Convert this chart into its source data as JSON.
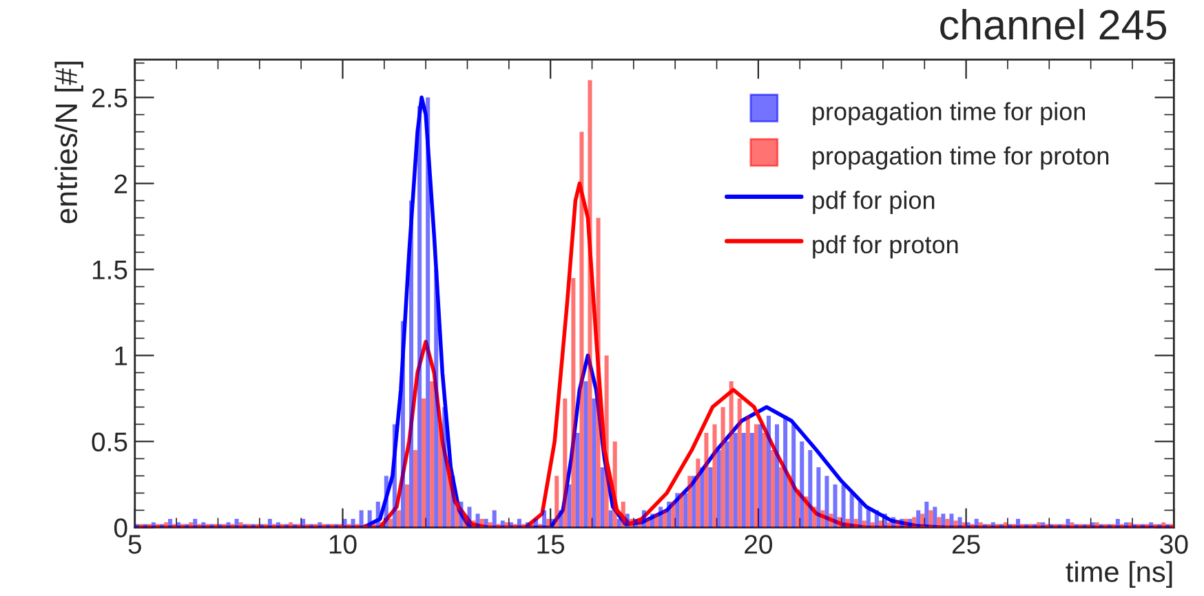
{
  "chart_data": {
    "type": "histogram",
    "title": "channel 245",
    "xlabel": "time [ns]",
    "ylabel": "entries/N [#]",
    "bins": [
      5.0,
      5.2,
      5.4,
      5.6,
      5.8,
      6.0,
      6.2,
      6.4,
      6.6,
      6.8,
      7.0,
      7.2,
      7.4,
      7.6,
      7.8,
      8.0,
      8.2,
      8.4,
      8.6,
      8.8,
      9.0,
      9.2,
      9.4,
      9.6,
      9.8,
      10.0,
      10.2,
      10.4,
      10.6,
      10.8,
      11.0,
      11.2,
      11.4,
      11.6,
      11.8,
      12.0,
      12.2,
      12.4,
      12.6,
      12.8,
      13.0,
      13.2,
      13.4,
      13.6,
      13.8,
      14.0,
      14.2,
      14.4,
      14.6,
      14.8,
      15.0,
      15.2,
      15.4,
      15.6,
      15.8,
      16.0,
      16.2,
      16.4,
      16.6,
      16.8,
      17.0,
      17.2,
      17.4,
      17.6,
      17.8,
      18.0,
      18.2,
      18.4,
      18.6,
      18.8,
      19.0,
      19.2,
      19.4,
      19.6,
      19.8,
      20.0,
      20.2,
      20.4,
      20.6,
      20.8,
      21.0,
      21.2,
      21.4,
      21.6,
      21.8,
      22.0,
      22.2,
      22.4,
      22.6,
      22.8,
      23.0,
      23.2,
      23.4,
      23.6,
      23.8,
      24.0,
      24.2,
      24.4,
      24.6,
      24.8,
      25.0,
      25.2,
      25.4,
      25.6,
      25.8,
      26.0,
      26.2,
      26.4,
      26.6,
      26.8,
      27.0,
      27.2,
      27.4,
      27.6,
      27.8,
      28.0,
      28.2,
      28.4,
      28.6,
      28.8,
      29.0,
      29.2,
      29.4,
      29.6,
      29.8,
      30.0
    ],
    "series": [
      {
        "type": "histogram",
        "name": "propagation time for pion",
        "color": "#0000ff",
        "values": [
          0.02,
          0.02,
          0.03,
          0.02,
          0.05,
          0.03,
          0.02,
          0.05,
          0.03,
          0.02,
          0.02,
          0.03,
          0.05,
          0.02,
          0.02,
          0.02,
          0.05,
          0.03,
          0.02,
          0.02,
          0.05,
          0.02,
          0.03,
          0.02,
          0.02,
          0.05,
          0.05,
          0.1,
          0.1,
          0.15,
          0.3,
          0.6,
          1.2,
          1.9,
          2.45,
          2.5,
          1.5,
          0.7,
          0.3,
          0.15,
          0.12,
          0.08,
          0.05,
          0.1,
          0.04,
          0.03,
          0.05,
          0.03,
          0.05,
          0.1,
          0.05,
          0.1,
          0.25,
          0.55,
          0.85,
          0.75,
          0.35,
          0.1,
          0.05,
          0.08,
          0.05,
          0.1,
          0.08,
          0.12,
          0.15,
          0.2,
          0.2,
          0.3,
          0.35,
          0.35,
          0.45,
          0.5,
          0.55,
          0.55,
          0.55,
          0.6,
          0.65,
          0.6,
          0.65,
          0.6,
          0.5,
          0.45,
          0.35,
          0.3,
          0.25,
          0.25,
          0.2,
          0.15,
          0.12,
          0.1,
          0.08,
          0.06,
          0.05,
          0.05,
          0.1,
          0.15,
          0.12,
          0.08,
          0.08,
          0.06,
          0.03,
          0.05,
          0.02,
          0.03,
          0.02,
          0.02,
          0.05,
          0.02,
          0.02,
          0.03,
          0.02,
          0.02,
          0.05,
          0.02,
          0.02,
          0.03,
          0.02,
          0.02,
          0.05,
          0.03,
          0.02,
          0.02,
          0.03,
          0.02,
          0.02
        ]
      },
      {
        "type": "histogram",
        "name": "propagation time for proton",
        "color": "#ff0000",
        "values": [
          0.02,
          0.02,
          0.02,
          0.03,
          0.02,
          0.02,
          0.03,
          0.02,
          0.02,
          0.02,
          0.02,
          0.02,
          0.03,
          0.02,
          0.02,
          0.02,
          0.02,
          0.02,
          0.03,
          0.02,
          0.02,
          0.02,
          0.02,
          0.02,
          0.02,
          0.02,
          0.02,
          0.02,
          0.02,
          0.03,
          0.05,
          0.1,
          0.25,
          0.45,
          0.75,
          0.85,
          0.6,
          0.35,
          0.15,
          0.06,
          0.04,
          0.05,
          0.03,
          0.02,
          0.03,
          0.02,
          0.02,
          0.03,
          0.02,
          0.05,
          0.3,
          0.75,
          1.45,
          2.3,
          2.6,
          1.8,
          1.0,
          0.5,
          0.15,
          0.05,
          0.04,
          0.05,
          0.08,
          0.1,
          0.15,
          0.2,
          0.3,
          0.4,
          0.55,
          0.6,
          0.7,
          0.85,
          0.75,
          0.65,
          0.6,
          0.55,
          0.45,
          0.35,
          0.3,
          0.22,
          0.18,
          0.12,
          0.1,
          0.08,
          0.06,
          0.05,
          0.05,
          0.04,
          0.03,
          0.04,
          0.03,
          0.04,
          0.05,
          0.06,
          0.08,
          0.1,
          0.06,
          0.05,
          0.04,
          0.03,
          0.02,
          0.03,
          0.02,
          0.02,
          0.03,
          0.02,
          0.02,
          0.02,
          0.03,
          0.02,
          0.02,
          0.02,
          0.03,
          0.02,
          0.02,
          0.03,
          0.02,
          0.02,
          0.02,
          0.03,
          0.02,
          0.02,
          0.02,
          0.03,
          0.02
        ]
      },
      {
        "type": "line",
        "name": "pdf for pion",
        "color": "#0000ff",
        "x": [
          5,
          10.5,
          10.9,
          11.2,
          11.4,
          11.6,
          11.8,
          11.9,
          12.0,
          12.2,
          12.4,
          12.6,
          12.8,
          13.0,
          13.5,
          15.0,
          15.3,
          15.5,
          15.7,
          15.9,
          16.1,
          16.3,
          16.5,
          16.8,
          17.2,
          17.8,
          18.4,
          19.0,
          19.6,
          20.2,
          20.8,
          21.4,
          22.0,
          22.6,
          23.2,
          23.8,
          24.5,
          30
        ],
        "values": [
          0,
          0,
          0.05,
          0.3,
          0.8,
          1.6,
          2.3,
          2.5,
          2.4,
          1.7,
          0.9,
          0.35,
          0.1,
          0.02,
          0,
          0,
          0.1,
          0.4,
          0.8,
          1.0,
          0.8,
          0.4,
          0.12,
          0.02,
          0.03,
          0.1,
          0.25,
          0.45,
          0.62,
          0.7,
          0.62,
          0.45,
          0.27,
          0.12,
          0.04,
          0.01,
          0,
          0
        ]
      },
      {
        "type": "line",
        "name": "pdf for proton",
        "color": "#ff0000",
        "x": [
          5,
          10.9,
          11.3,
          11.6,
          11.8,
          12.0,
          12.2,
          12.4,
          12.7,
          13.1,
          13.5,
          14.4,
          14.8,
          15.1,
          15.4,
          15.6,
          15.7,
          15.9,
          16.1,
          16.3,
          16.6,
          16.9,
          17.2,
          17.8,
          18.4,
          18.9,
          19.4,
          19.9,
          20.4,
          20.9,
          21.4,
          22.0,
          22.6,
          30
        ],
        "values": [
          0,
          0,
          0.12,
          0.5,
          0.9,
          1.08,
          0.9,
          0.5,
          0.15,
          0.02,
          0,
          0,
          0.08,
          0.5,
          1.3,
          1.9,
          2.0,
          1.8,
          1.1,
          0.45,
          0.1,
          0.02,
          0.05,
          0.2,
          0.45,
          0.7,
          0.8,
          0.7,
          0.45,
          0.22,
          0.08,
          0.02,
          0,
          0
        ]
      }
    ],
    "xlim": [
      5,
      30
    ],
    "xticks": [
      5,
      10,
      15,
      20,
      25,
      30
    ],
    "ylim": [
      0,
      2.72
    ],
    "yticks": [
      0,
      0.5,
      1,
      1.5,
      2,
      2.5
    ],
    "legend": "top right",
    "grid": false
  }
}
